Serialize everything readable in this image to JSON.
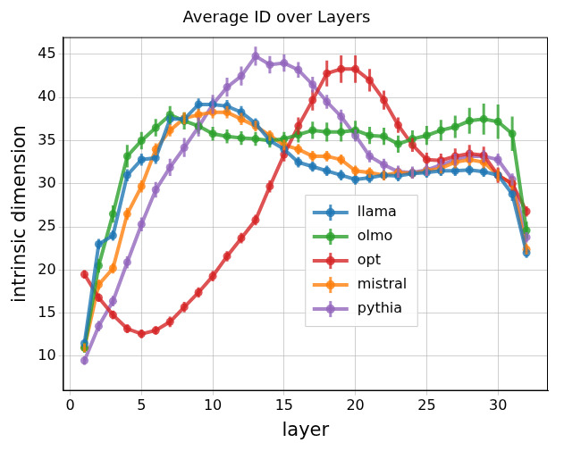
{
  "chart_data": {
    "type": "line",
    "title": "Average ID over Layers",
    "x_label": "layer",
    "y_label": "intrinsic dimension",
    "x": [
      1,
      2,
      3,
      4,
      5,
      6,
      7,
      8,
      9,
      10,
      11,
      12,
      13,
      14,
      15,
      16,
      17,
      18,
      19,
      20,
      21,
      22,
      23,
      24,
      25,
      26,
      27,
      28,
      29,
      30,
      31,
      32
    ],
    "series": [
      {
        "name": "llama",
        "color": "#1f77b4",
        "values": [
          11.5,
          23,
          24,
          31,
          32.8,
          33,
          37.5,
          37.5,
          39.2,
          39.2,
          39,
          38.3,
          37,
          35,
          34,
          32.5,
          32,
          31.5,
          31,
          30.5,
          30.7,
          31,
          30.9,
          31.2,
          31.3,
          31.5,
          31.5,
          31.6,
          31.4,
          31,
          28.8,
          22
        ],
        "errors": [
          0.5,
          0.6,
          0.6,
          0.7,
          0.7,
          0.7,
          0.7,
          0.7,
          0.7,
          0.7,
          0.7,
          0.7,
          0.6,
          0.6,
          0.6,
          0.6,
          0.6,
          0.6,
          0.6,
          0.6,
          0.6,
          0.6,
          0.6,
          0.6,
          0.6,
          0.6,
          0.6,
          0.6,
          0.6,
          0.7,
          0.8,
          0.6
        ]
      },
      {
        "name": "olmo",
        "color": "#2ca02c",
        "values": [
          11,
          20.5,
          26.5,
          33.2,
          35,
          36.5,
          38,
          37.3,
          36.7,
          35.8,
          35.5,
          35.3,
          35.2,
          35,
          35.2,
          35.7,
          36.2,
          36,
          36,
          36.2,
          35.6,
          35.5,
          34.6,
          35.2,
          35.6,
          36.2,
          36.6,
          37.3,
          37.5,
          37.2,
          35.8,
          24.6
        ],
        "errors": [
          0.6,
          0.8,
          1,
          1.3,
          1,
          1,
          1,
          1,
          0.9,
          0.8,
          0.8,
          0.8,
          0.8,
          0.8,
          0.8,
          0.9,
          1,
          1.1,
          1.1,
          1.1,
          1,
          1,
          1,
          1,
          1.1,
          1.2,
          1.3,
          1.5,
          1.8,
          2,
          2,
          1
        ]
      },
      {
        "name": "opt",
        "color": "#d62728",
        "values": [
          19.5,
          16.8,
          14.8,
          13.2,
          12.6,
          13,
          14,
          15.7,
          17.4,
          19.3,
          21.6,
          23.7,
          25.8,
          29.7,
          33.4,
          36.7,
          39.7,
          42.8,
          43.3,
          43.3,
          42,
          39.7,
          36.8,
          34.5,
          32.8,
          32.7,
          33.2,
          33.5,
          33.3,
          31,
          30,
          26.8
        ],
        "errors": [
          0.5,
          0.5,
          0.5,
          0.5,
          0.5,
          0.5,
          0.6,
          0.6,
          0.6,
          0.6,
          0.6,
          0.6,
          0.6,
          0.7,
          0.8,
          1,
          1.2,
          1.5,
          1.6,
          1.6,
          1.3,
          1.1,
          0.9,
          0.8,
          0.8,
          0.8,
          0.9,
          1,
          1,
          0.9,
          0.8,
          0.6
        ]
      },
      {
        "name": "mistral",
        "color": "#ff7f0e",
        "values": [
          11,
          18.3,
          20.2,
          26.5,
          29.7,
          34,
          36.2,
          37.6,
          38,
          38.3,
          38.3,
          37.5,
          36.7,
          35.6,
          34.5,
          34,
          33.2,
          33.2,
          32.8,
          31.5,
          31.3,
          31,
          31.3,
          31.2,
          31.5,
          31.8,
          32.5,
          32.8,
          32.5,
          31,
          30,
          22.4
        ],
        "errors": [
          0.5,
          0.6,
          0.6,
          0.7,
          0.7,
          0.7,
          0.7,
          0.7,
          0.7,
          0.7,
          0.7,
          0.7,
          0.6,
          0.6,
          0.6,
          0.6,
          0.6,
          0.6,
          0.6,
          0.6,
          0.6,
          0.6,
          0.6,
          0.6,
          0.6,
          0.6,
          0.7,
          0.7,
          0.7,
          0.7,
          0.7,
          0.6
        ]
      },
      {
        "name": "pythia",
        "color": "#9467bd",
        "values": [
          9.5,
          13.5,
          16.4,
          20.9,
          25.3,
          29.3,
          31.9,
          34.2,
          36.6,
          39.2,
          41.2,
          42.5,
          44.8,
          43.8,
          44,
          43.2,
          41.5,
          39.5,
          37.8,
          35.6,
          33.2,
          32.2,
          31.4,
          31.3,
          31.6,
          32.2,
          32.8,
          33.2,
          33.2,
          32.8,
          30.5,
          23.8
        ],
        "errors": [
          0.5,
          0.6,
          0.6,
          0.7,
          0.8,
          0.9,
          1,
          1.1,
          1.1,
          1.1,
          1.1,
          1.1,
          1.1,
          1,
          1,
          0.9,
          0.9,
          0.8,
          0.8,
          0.7,
          0.7,
          0.7,
          0.7,
          0.7,
          0.7,
          0.7,
          0.7,
          0.7,
          0.7,
          0.7,
          0.7,
          0.6
        ]
      }
    ],
    "xlim": [
      -0.5,
      33.5
    ],
    "xticks": [
      0,
      5,
      10,
      15,
      20,
      25,
      30
    ],
    "ylim": [
      6,
      47
    ],
    "yticks": [
      10,
      15,
      20,
      25,
      30,
      35,
      40,
      45
    ],
    "grid": true,
    "legend": "lower center",
    "marker": "circle",
    "line_style": "solid"
  }
}
